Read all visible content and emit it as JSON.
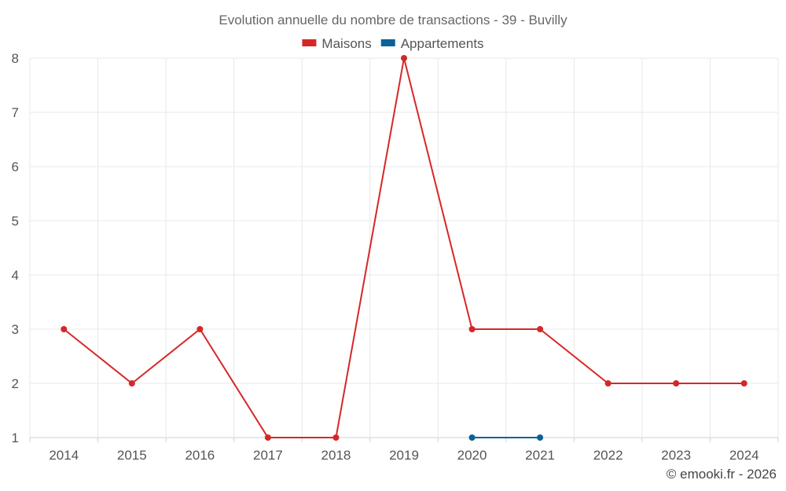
{
  "chart_data": {
    "type": "line",
    "title": "Evolution annuelle du nombre de transactions - 39 - Buvilly",
    "categories": [
      "2014",
      "2015",
      "2016",
      "2017",
      "2018",
      "2019",
      "2020",
      "2021",
      "2022",
      "2023",
      "2024"
    ],
    "ylim": [
      1,
      8
    ],
    "yticks": [
      "1",
      "2",
      "3",
      "4",
      "5",
      "6",
      "7",
      "8"
    ],
    "grid": true,
    "legend_position": "top-center",
    "series": [
      {
        "name": "Maisons",
        "color": "#d62728",
        "values": [
          3,
          2,
          3,
          1,
          1,
          8,
          3,
          3,
          2,
          2,
          2
        ]
      },
      {
        "name": "Appartements",
        "color": "#0a6299",
        "values": [
          null,
          null,
          null,
          null,
          null,
          null,
          1,
          1,
          null,
          null,
          null
        ]
      }
    ]
  },
  "credit": "© emooki.fr - 2026"
}
